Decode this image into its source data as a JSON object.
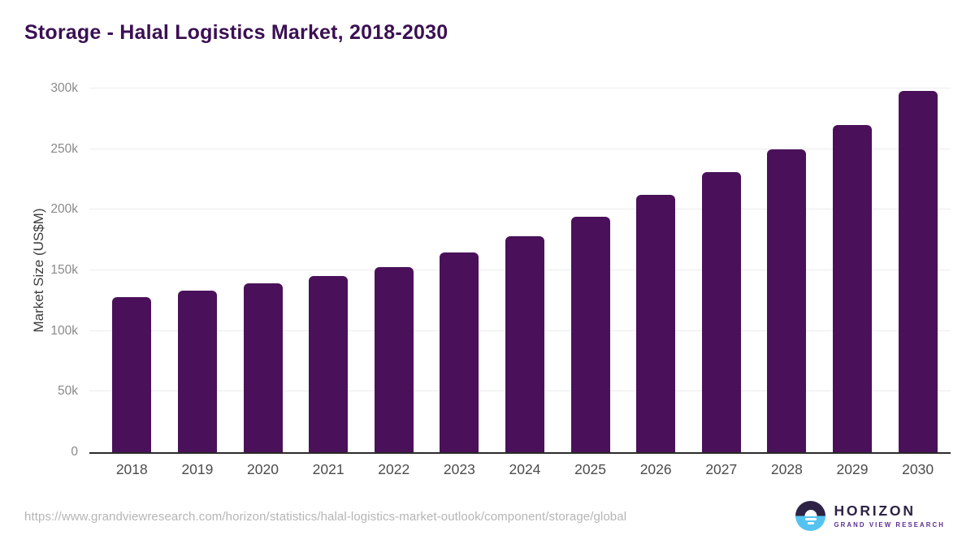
{
  "page": {
    "title": "Storage - Halal Logistics Market, 2018-2030"
  },
  "chart_data": {
    "type": "bar",
    "title": "Storage - Halal Logistics Market, 2018-2030",
    "categories": [
      "2018",
      "2019",
      "2020",
      "2021",
      "2022",
      "2023",
      "2024",
      "2025",
      "2026",
      "2027",
      "2028",
      "2029",
      "2030"
    ],
    "values": [
      128000,
      133000,
      139000,
      145000,
      153000,
      165000,
      178000,
      194000,
      212000,
      231000,
      250000,
      270000,
      298000
    ],
    "xlabel": "",
    "ylabel": "Market Size (US$M)",
    "ylim": [
      0,
      300000
    ],
    "ytick_values": [
      0,
      50000,
      100000,
      150000,
      200000,
      250000,
      300000
    ],
    "ytick_labels": [
      "0",
      "50k",
      "100k",
      "150k",
      "200k",
      "250k",
      "300k"
    ],
    "grid": "horizontal",
    "legend": "none",
    "bar_color": "#4a115a"
  },
  "footer": {
    "source_url": "https://www.grandviewresearch.com/horizon/statistics/halal-logistics-market-outlook/component/storage/global",
    "logo": {
      "brand": "HORIZON",
      "subbrand": "GRAND VIEW RESEARCH"
    }
  },
  "colors": {
    "title_text": "#3b1053",
    "bar": "#4a115a",
    "axis_line": "#2b2b2b",
    "gridline": "#ececec",
    "ytick_text": "#8a8a8a",
    "xtick_text": "#4c4c4c",
    "url_text": "#b5b5b5",
    "logo_dark": "#2e2347",
    "logo_purple": "#5b2d8e",
    "logo_blue": "#55c3f1"
  }
}
